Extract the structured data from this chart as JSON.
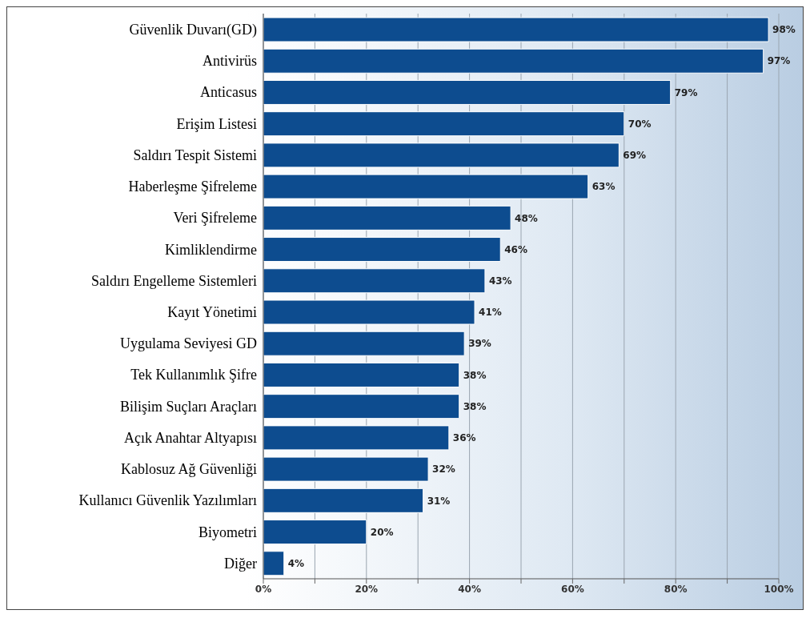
{
  "chart_data": {
    "type": "bar",
    "orientation": "horizontal",
    "categories": [
      "Güvenlik Duvarı(GD)",
      "Antivirüs",
      "Anticasus",
      "Erişim Listesi",
      "Saldırı Tespit Sistemi",
      "Haberleşme Şifreleme",
      "Veri Şifreleme",
      "Kimliklendirme",
      "Saldırı Engelleme Sistemleri",
      "Kayıt Yönetimi",
      "Uygulama Seviyesi GD",
      "Tek Kullanımlık Şifre",
      "Bilişim Suçları Araçları",
      "Açık Anahtar Altyapısı",
      "Kablosuz Ağ Güvenliği",
      "Kullanıcı Güvenlik Yazılımları",
      "Biyometri",
      "Diğer"
    ],
    "values": [
      98,
      97,
      79,
      70,
      69,
      63,
      48,
      46,
      43,
      41,
      39,
      38,
      38,
      36,
      32,
      31,
      20,
      4
    ],
    "value_labels": [
      "98%",
      "97%",
      "79%",
      "70%",
      "69%",
      "63%",
      "48%",
      "46%",
      "43%",
      "41%",
      "39%",
      "38%",
      "38%",
      "36%",
      "32%",
      "31%",
      "20%",
      "4%"
    ],
    "color": "#0d4c8f",
    "xlim": [
      0,
      100
    ],
    "xticks": [
      {
        "value": 0,
        "label": "0%"
      },
      {
        "value": 10,
        "label": null
      },
      {
        "value": 20,
        "label": "20%"
      },
      {
        "value": 30,
        "label": null
      },
      {
        "value": 40,
        "label": "40%"
      },
      {
        "value": 50,
        "label": null
      },
      {
        "value": 60,
        "label": "60%"
      },
      {
        "value": 70,
        "label": null
      },
      {
        "value": 80,
        "label": "80%"
      },
      {
        "value": 90,
        "label": null
      },
      {
        "value": 100,
        "label": "100%"
      }
    ],
    "grid": "x"
  }
}
